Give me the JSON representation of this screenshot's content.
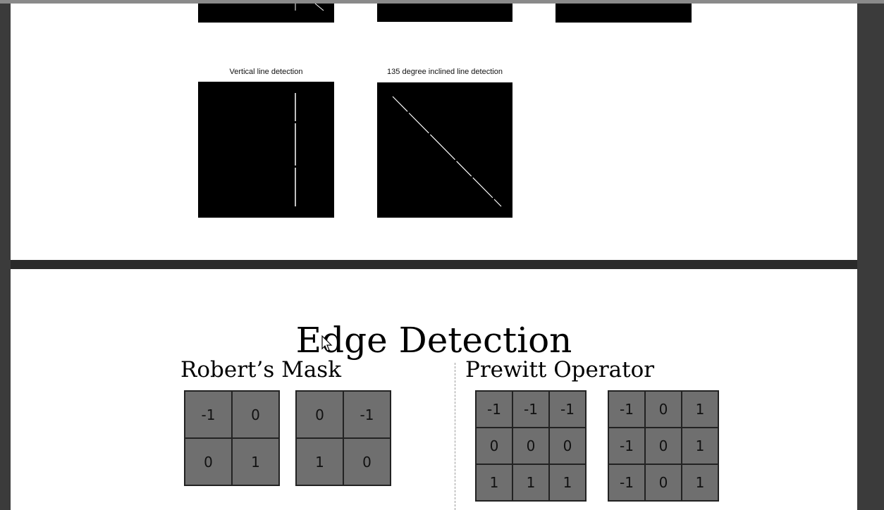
{
  "page1": {
    "captions": {
      "vertical": "Vertical line detection",
      "inclined": "135 degree inclined line detection"
    }
  },
  "slide": {
    "title": "Edge Detection",
    "robert": {
      "heading": "Robert’s Mask",
      "mask1": [
        "-1",
        "0",
        "0",
        "1"
      ],
      "mask2": [
        "0",
        "-1",
        "1",
        "0"
      ]
    },
    "prewitt": {
      "heading": "Prewitt Operator",
      "mask1": [
        "-1",
        "-1",
        "-1",
        "0",
        "0",
        "0",
        "1",
        "1",
        "1"
      ],
      "mask2": [
        "-1",
        "0",
        "1",
        "-1",
        "0",
        "1",
        "-1",
        "0",
        "1"
      ]
    }
  },
  "colors": {
    "viewer_background": "#3b3b3b",
    "page": "#ffffff",
    "mask_fill": "#6f6f6f"
  },
  "icons": [
    "mouse-pointer-icon"
  ]
}
